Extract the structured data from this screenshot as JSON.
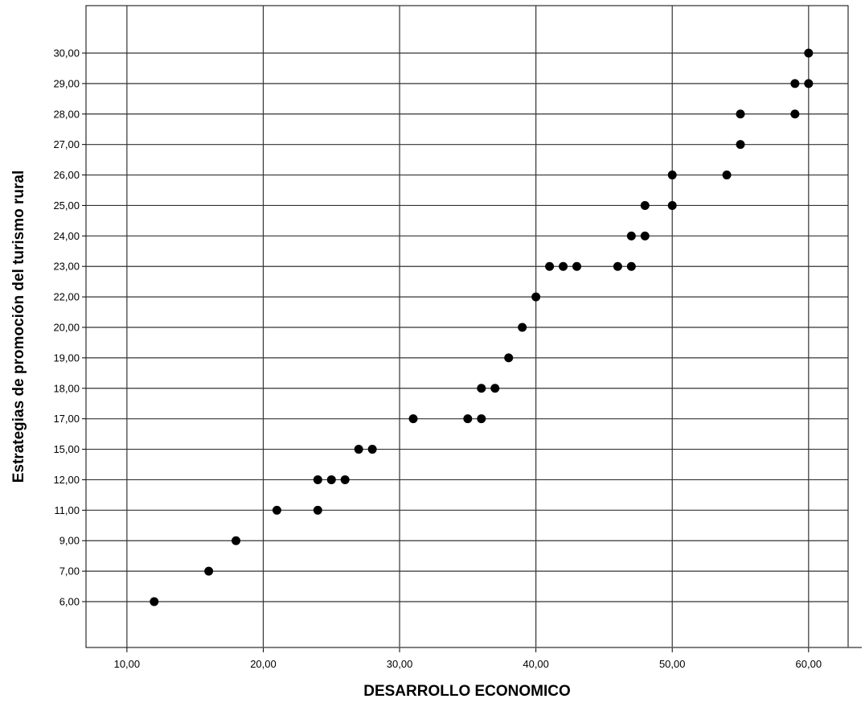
{
  "chart_data": {
    "type": "scatter",
    "title": "",
    "xlabel": "DESARROLLO ECONOMICO",
    "ylabel": "Estrategias de promoción del turismo rural",
    "xlim": [
      7.0,
      62.9
    ],
    "x_ticks": [
      10,
      20,
      30,
      40,
      50,
      60
    ],
    "x_tick_labels": [
      "10,00",
      "20,00",
      "30,00",
      "40,00",
      "50,00",
      "60,00"
    ],
    "y_categories": [
      "6,00",
      "7,00",
      "9,00",
      "11,00",
      "12,00",
      "15,00",
      "17,00",
      "18,00",
      "19,00",
      "20,00",
      "22,00",
      "23,00",
      "24,00",
      "25,00",
      "26,00",
      "27,00",
      "28,00",
      "29,00",
      "30,00"
    ],
    "grid": true,
    "legend": "none",
    "point_color": "#000000",
    "points": [
      {
        "x": 12,
        "y": "6,00"
      },
      {
        "x": 16,
        "y": "7,00"
      },
      {
        "x": 18,
        "y": "9,00"
      },
      {
        "x": 21,
        "y": "11,00"
      },
      {
        "x": 24,
        "y": "11,00"
      },
      {
        "x": 24,
        "y": "12,00"
      },
      {
        "x": 25,
        "y": "12,00"
      },
      {
        "x": 26,
        "y": "12,00"
      },
      {
        "x": 27,
        "y": "15,00"
      },
      {
        "x": 28,
        "y": "15,00"
      },
      {
        "x": 31,
        "y": "17,00"
      },
      {
        "x": 35,
        "y": "17,00"
      },
      {
        "x": 36,
        "y": "17,00"
      },
      {
        "x": 36,
        "y": "18,00"
      },
      {
        "x": 37,
        "y": "18,00"
      },
      {
        "x": 38,
        "y": "19,00"
      },
      {
        "x": 39,
        "y": "20,00"
      },
      {
        "x": 40,
        "y": "22,00"
      },
      {
        "x": 41,
        "y": "23,00"
      },
      {
        "x": 42,
        "y": "23,00"
      },
      {
        "x": 43,
        "y": "23,00"
      },
      {
        "x": 46,
        "y": "23,00"
      },
      {
        "x": 47,
        "y": "23,00"
      },
      {
        "x": 47,
        "y": "24,00"
      },
      {
        "x": 48,
        "y": "24,00"
      },
      {
        "x": 48,
        "y": "25,00"
      },
      {
        "x": 50,
        "y": "25,00"
      },
      {
        "x": 50,
        "y": "26,00"
      },
      {
        "x": 54,
        "y": "26,00"
      },
      {
        "x": 55,
        "y": "27,00"
      },
      {
        "x": 55,
        "y": "28,00"
      },
      {
        "x": 59,
        "y": "28,00"
      },
      {
        "x": 59,
        "y": "29,00"
      },
      {
        "x": 60,
        "y": "29,00"
      },
      {
        "x": 60,
        "y": "30,00"
      }
    ]
  }
}
